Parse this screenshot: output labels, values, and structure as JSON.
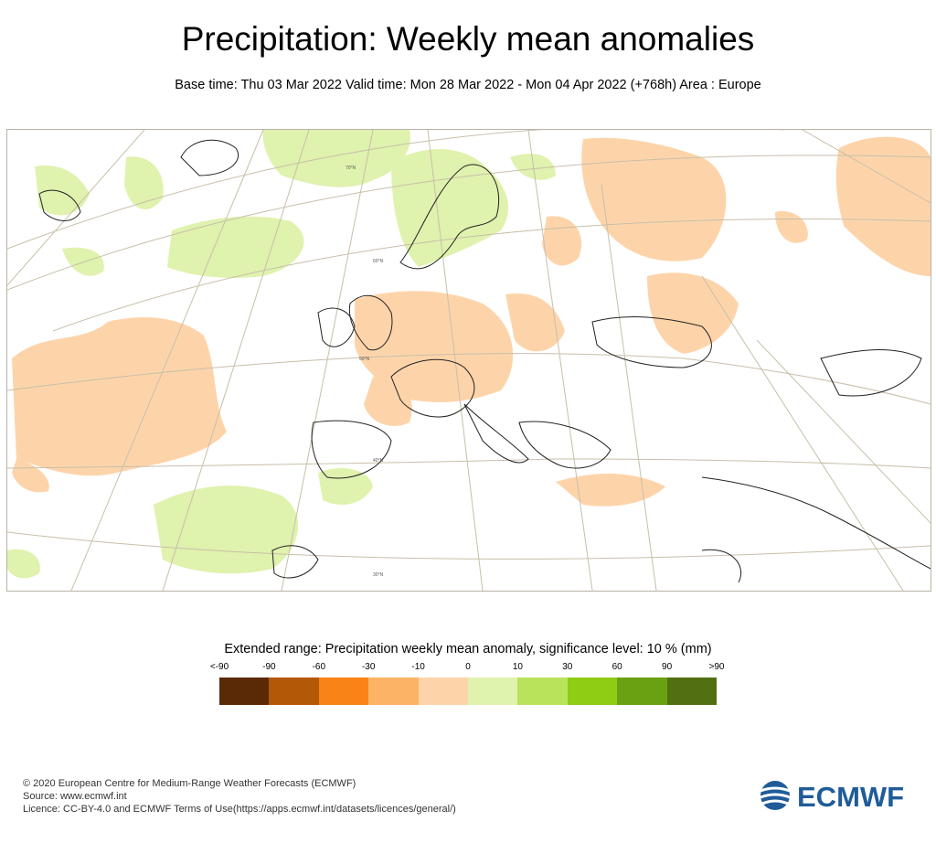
{
  "title": "Precipitation: Weekly mean anomalies",
  "subtitle": "Base time: Thu 03 Mar 2022 Valid time: Mon 28 Mar 2022 - Mon 04 Apr 2022 (+768h) Area : Europe",
  "map": {
    "lat_labels": [
      "70°N",
      "60°N",
      "50°N",
      "40°N",
      "30°N"
    ]
  },
  "legend": {
    "title": "Extended range: Precipitation weekly mean anomaly, significance level: 10 % (mm)",
    "labels": [
      "<-90",
      "-90",
      "-60",
      "-30",
      "-10",
      "0",
      "10",
      "30",
      "60",
      "90",
      ">90"
    ],
    "colors": [
      "#5a2a06",
      "#b35806",
      "#f98316",
      "#fdb366",
      "#fdd4aa",
      "#dff2ae",
      "#b8e35a",
      "#8fcc14",
      "#6aa112",
      "#527012"
    ]
  },
  "footer": {
    "copyright": "© 2020 European Centre for Medium-Range Weather Forecasts (ECMWF)",
    "source": "Source: www.ecmwf.int",
    "licence": "Licence: CC-BY-4.0 and ECMWF Terms of Use(https://apps.ecmwf.int/datasets/licences/general/)"
  },
  "logo_text": "ECMWF"
}
